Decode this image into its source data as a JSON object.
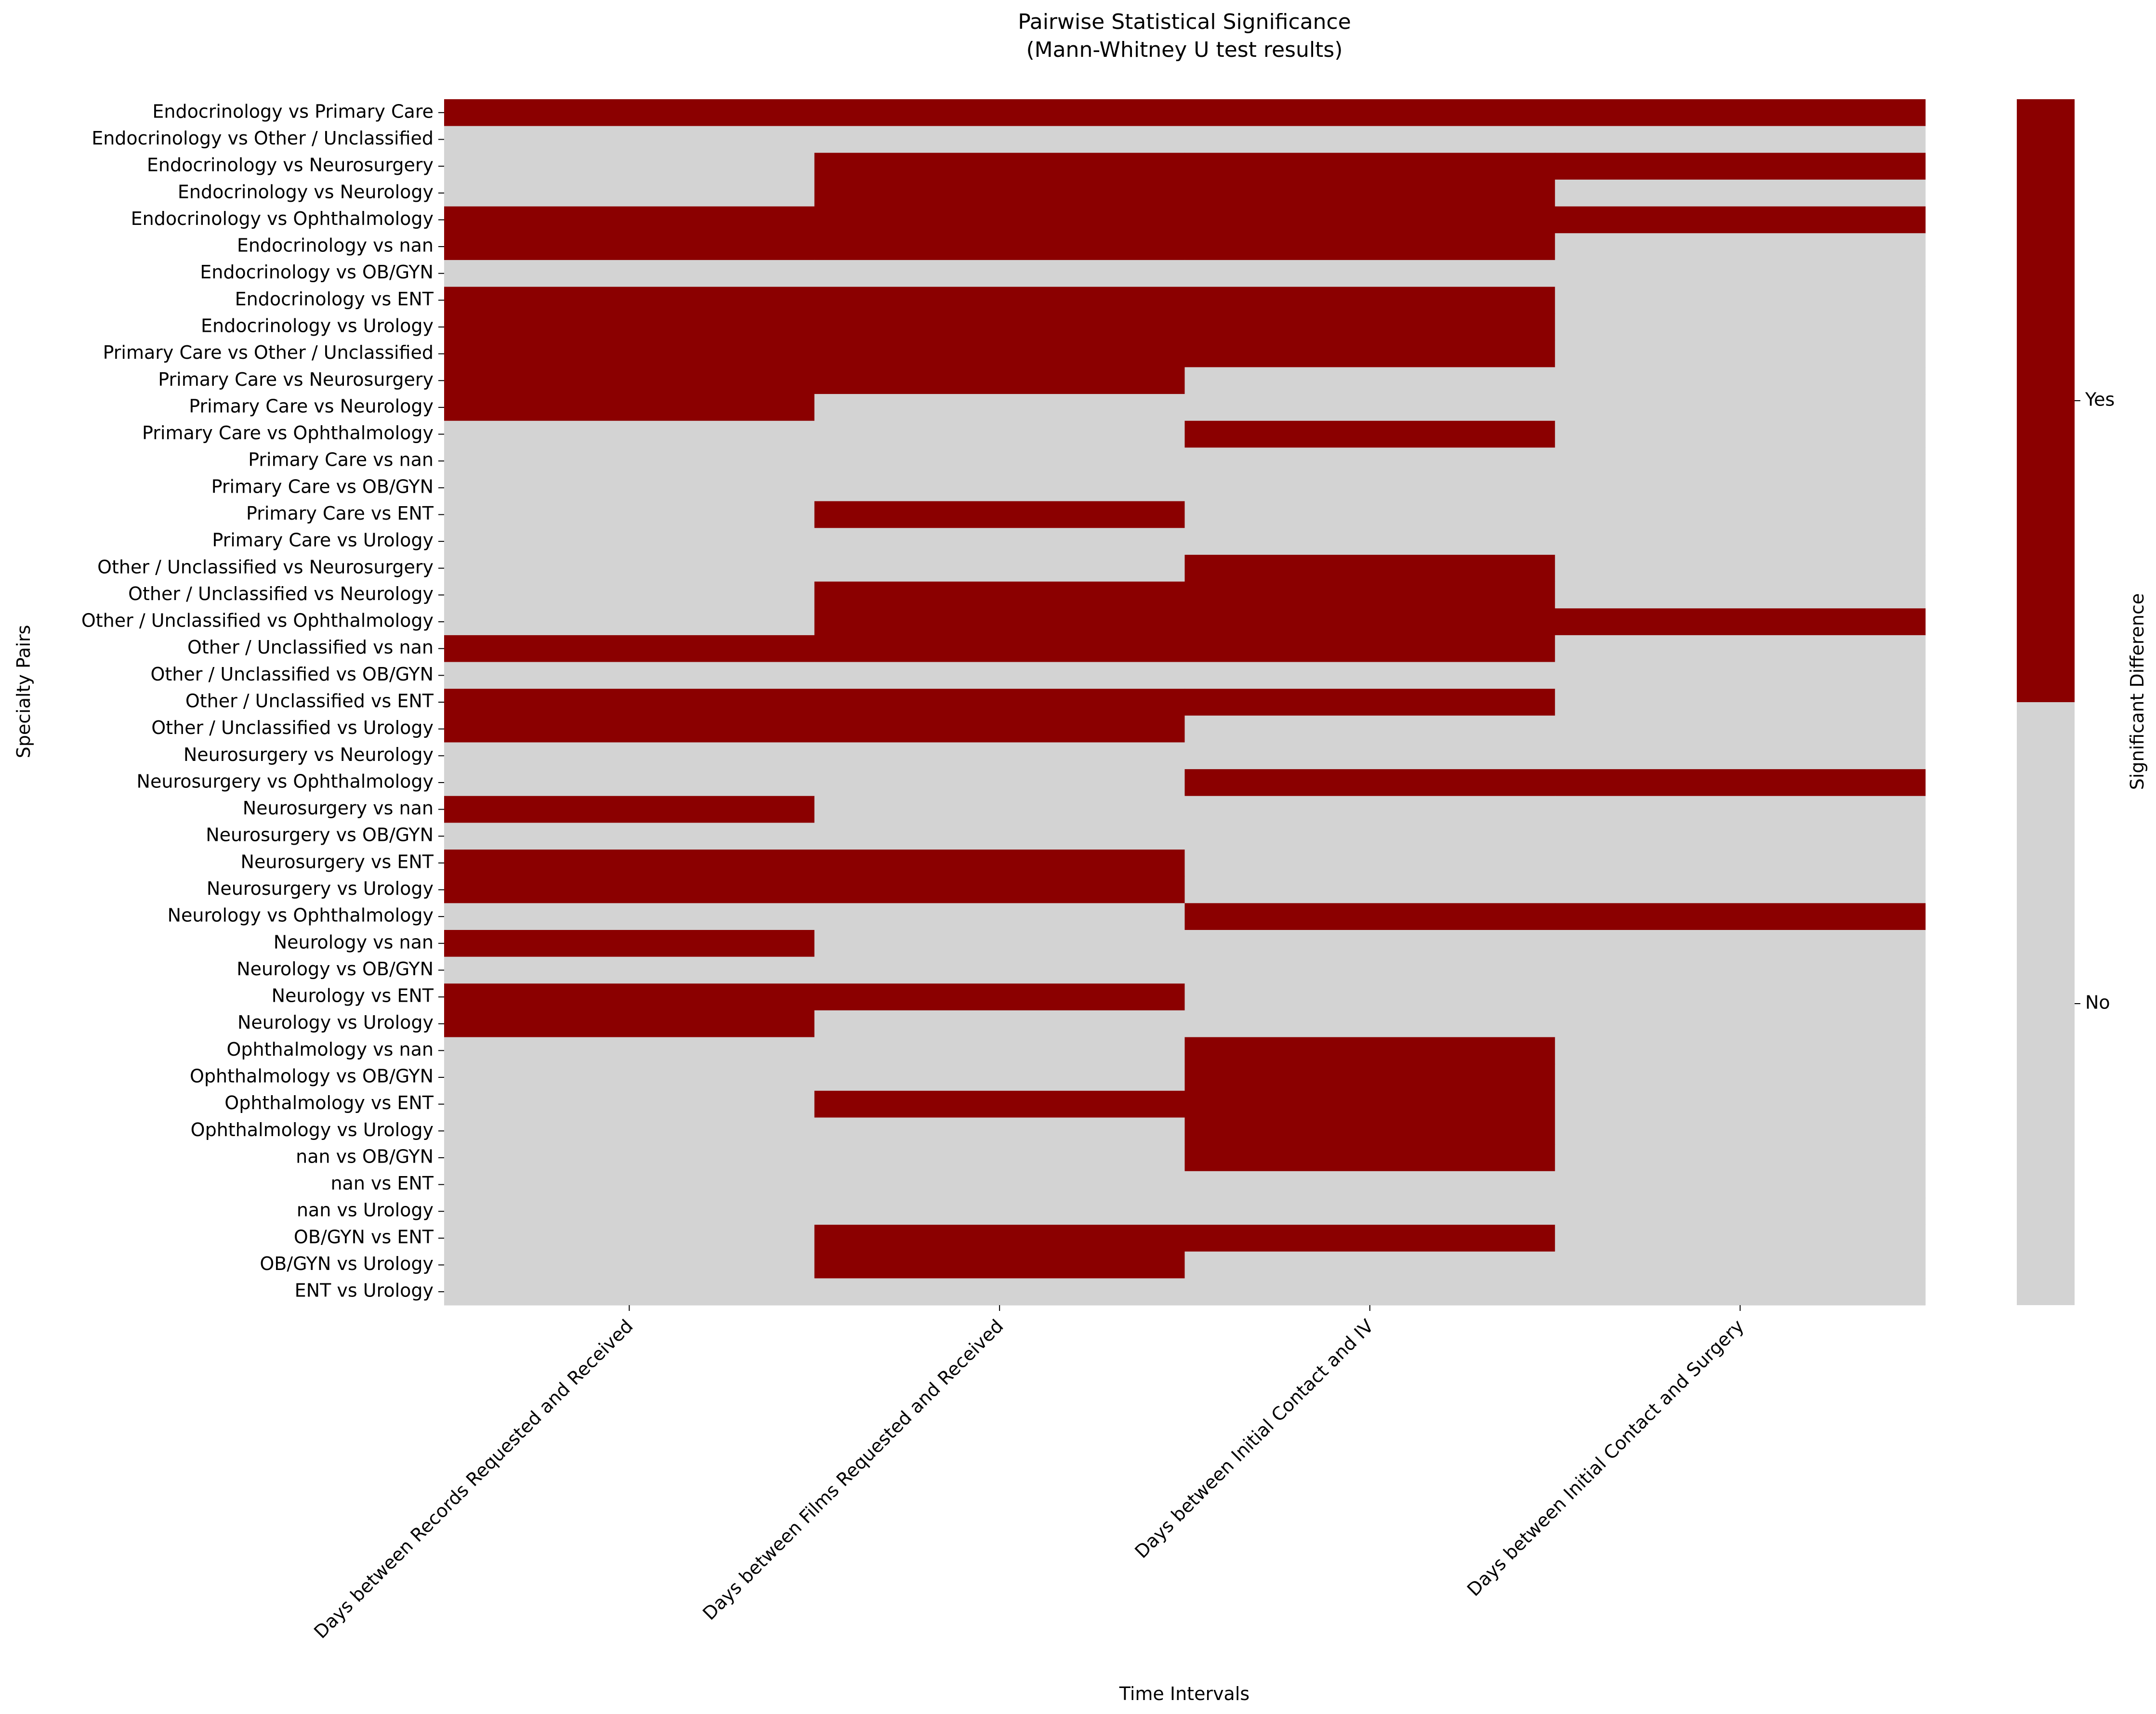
{
  "chart_data": {
    "type": "heatmap",
    "title": "Pairwise Statistical Significance",
    "subtitle": "(Mann-Whitney U test results)",
    "xlabel": "Time Intervals",
    "ylabel": "Specialty Pairs",
    "colorbar_label": "Significant Difference",
    "colorbar_ticks": [
      "No",
      "Yes"
    ],
    "colors": {
      "yes": "#8b0000",
      "no": "#d3d3d3"
    },
    "columns": [
      "Days between Records Requested and Received",
      "Days between Films Requested and Received",
      "Days between Initial Contact and IV",
      "Days between Initial Contact and Surgery"
    ],
    "rows": [
      "Endocrinology vs Primary Care",
      "Endocrinology vs Other / Unclassified",
      "Endocrinology vs Neurosurgery",
      "Endocrinology vs Neurology",
      "Endocrinology vs Ophthalmology",
      "Endocrinology vs nan",
      "Endocrinology vs OB/GYN",
      "Endocrinology vs ENT",
      "Endocrinology vs Urology",
      "Primary Care vs Other / Unclassified",
      "Primary Care vs Neurosurgery",
      "Primary Care vs Neurology",
      "Primary Care vs Ophthalmology",
      "Primary Care vs nan",
      "Primary Care vs OB/GYN",
      "Primary Care vs ENT",
      "Primary Care vs Urology",
      "Other / Unclassified vs Neurosurgery",
      "Other / Unclassified vs Neurology",
      "Other / Unclassified vs Ophthalmology",
      "Other / Unclassified vs nan",
      "Other / Unclassified vs OB/GYN",
      "Other / Unclassified vs ENT",
      "Other / Unclassified vs Urology",
      "Neurosurgery vs Neurology",
      "Neurosurgery vs Ophthalmology",
      "Neurosurgery vs nan",
      "Neurosurgery vs OB/GYN",
      "Neurosurgery vs ENT",
      "Neurosurgery vs Urology",
      "Neurology vs Ophthalmology",
      "Neurology vs nan",
      "Neurology vs OB/GYN",
      "Neurology vs ENT",
      "Neurology vs Urology",
      "Ophthalmology vs nan",
      "Ophthalmology vs OB/GYN",
      "Ophthalmology vs ENT",
      "Ophthalmology vs Urology",
      "nan vs OB/GYN",
      "nan vs ENT",
      "nan vs Urology",
      "OB/GYN vs ENT",
      "OB/GYN vs Urology",
      "ENT vs Urology"
    ],
    "values": [
      [
        1,
        1,
        1,
        1
      ],
      [
        0,
        0,
        0,
        0
      ],
      [
        0,
        1,
        1,
        1
      ],
      [
        0,
        1,
        1,
        0
      ],
      [
        1,
        1,
        1,
        1
      ],
      [
        1,
        1,
        1,
        0
      ],
      [
        0,
        0,
        0,
        0
      ],
      [
        1,
        1,
        1,
        0
      ],
      [
        1,
        1,
        1,
        0
      ],
      [
        1,
        1,
        1,
        0
      ],
      [
        1,
        1,
        0,
        0
      ],
      [
        1,
        0,
        0,
        0
      ],
      [
        0,
        0,
        1,
        0
      ],
      [
        0,
        0,
        0,
        0
      ],
      [
        0,
        0,
        0,
        0
      ],
      [
        0,
        1,
        0,
        0
      ],
      [
        0,
        0,
        0,
        0
      ],
      [
        0,
        0,
        1,
        0
      ],
      [
        0,
        1,
        1,
        0
      ],
      [
        0,
        1,
        1,
        1
      ],
      [
        1,
        1,
        1,
        0
      ],
      [
        0,
        0,
        0,
        0
      ],
      [
        1,
        1,
        1,
        0
      ],
      [
        1,
        1,
        0,
        0
      ],
      [
        0,
        0,
        0,
        0
      ],
      [
        0,
        0,
        1,
        1
      ],
      [
        1,
        0,
        0,
        0
      ],
      [
        0,
        0,
        0,
        0
      ],
      [
        1,
        1,
        0,
        0
      ],
      [
        1,
        1,
        0,
        0
      ],
      [
        0,
        0,
        1,
        1
      ],
      [
        1,
        0,
        0,
        0
      ],
      [
        0,
        0,
        0,
        0
      ],
      [
        1,
        1,
        0,
        0
      ],
      [
        1,
        0,
        0,
        0
      ],
      [
        0,
        0,
        1,
        0
      ],
      [
        0,
        0,
        1,
        0
      ],
      [
        0,
        1,
        1,
        0
      ],
      [
        0,
        0,
        1,
        0
      ],
      [
        0,
        0,
        1,
        0
      ],
      [
        0,
        0,
        0,
        0
      ],
      [
        0,
        0,
        0,
        0
      ],
      [
        0,
        1,
        1,
        0
      ],
      [
        0,
        1,
        0,
        0
      ],
      [
        0,
        0,
        0,
        0
      ]
    ]
  }
}
